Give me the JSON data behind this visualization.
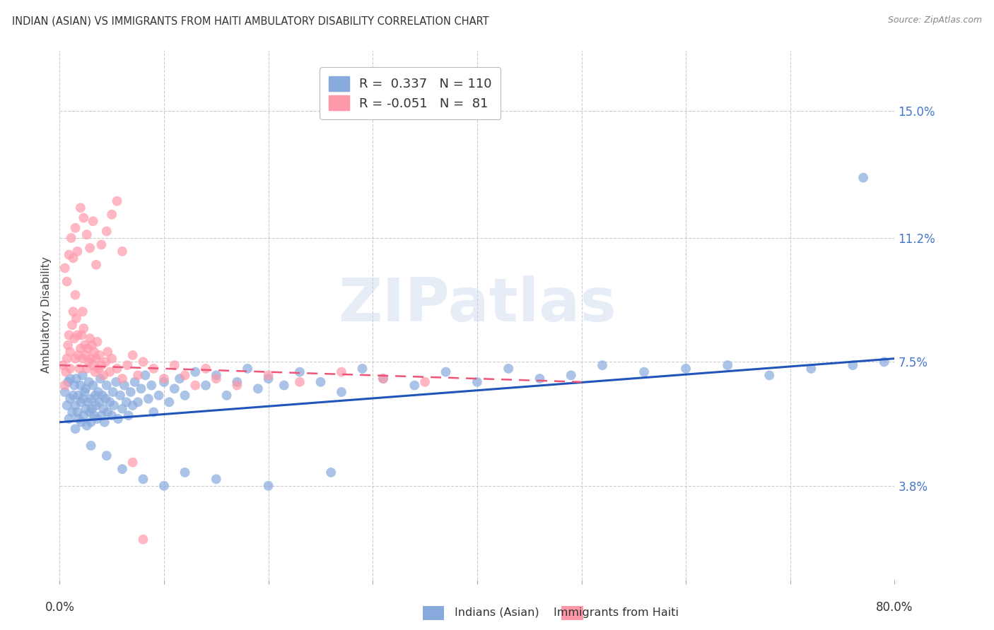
{
  "title": "INDIAN (ASIAN) VS IMMIGRANTS FROM HAITI AMBULATORY DISABILITY CORRELATION CHART",
  "source": "Source: ZipAtlas.com",
  "ylabel": "Ambulatory Disability",
  "ytick_vals": [
    0.038,
    0.075,
    0.112,
    0.15
  ],
  "ytick_labels": [
    "3.8%",
    "7.5%",
    "11.2%",
    "15.0%"
  ],
  "xmin": 0.0,
  "xmax": 0.8,
  "ymin": 0.01,
  "ymax": 0.168,
  "legend_blue_r": "0.337",
  "legend_blue_n": "110",
  "legend_pink_r": "-0.051",
  "legend_pink_n": "81",
  "blue_color": "#88AADD",
  "pink_color": "#FF99AA",
  "blue_line_color": "#2255BB",
  "pink_line_color": "#EE5577",
  "ytick_color": "#4477CC",
  "watermark": "ZIPatlas",
  "blue_trend_x0": 0.0,
  "blue_trend_x1": 0.8,
  "blue_trend_y0": 0.057,
  "blue_trend_y1": 0.076,
  "pink_trend_x0": 0.0,
  "pink_trend_x1": 0.5,
  "pink_trend_y0": 0.074,
  "pink_trend_y1": 0.069,
  "blue_scatter_x": [
    0.005,
    0.007,
    0.008,
    0.009,
    0.01,
    0.01,
    0.012,
    0.013,
    0.014,
    0.015,
    0.015,
    0.016,
    0.017,
    0.018,
    0.018,
    0.02,
    0.02,
    0.021,
    0.022,
    0.022,
    0.023,
    0.024,
    0.025,
    0.025,
    0.026,
    0.027,
    0.028,
    0.029,
    0.03,
    0.03,
    0.031,
    0.032,
    0.033,
    0.034,
    0.035,
    0.036,
    0.037,
    0.038,
    0.039,
    0.04,
    0.041,
    0.042,
    0.043,
    0.044,
    0.045,
    0.046,
    0.048,
    0.05,
    0.051,
    0.052,
    0.054,
    0.056,
    0.058,
    0.06,
    0.062,
    0.064,
    0.066,
    0.068,
    0.07,
    0.072,
    0.075,
    0.078,
    0.082,
    0.085,
    0.088,
    0.09,
    0.095,
    0.1,
    0.105,
    0.11,
    0.115,
    0.12,
    0.13,
    0.14,
    0.15,
    0.16,
    0.17,
    0.18,
    0.19,
    0.2,
    0.215,
    0.23,
    0.25,
    0.27,
    0.29,
    0.31,
    0.34,
    0.37,
    0.4,
    0.43,
    0.46,
    0.49,
    0.52,
    0.56,
    0.6,
    0.64,
    0.68,
    0.72,
    0.76,
    0.79,
    0.03,
    0.045,
    0.06,
    0.08,
    0.1,
    0.12,
    0.15,
    0.2,
    0.26,
    0.77
  ],
  "blue_scatter_y": [
    0.066,
    0.062,
    0.069,
    0.058,
    0.064,
    0.07,
    0.06,
    0.065,
    0.068,
    0.062,
    0.055,
    0.07,
    0.06,
    0.065,
    0.058,
    0.063,
    0.068,
    0.057,
    0.064,
    0.071,
    0.059,
    0.066,
    0.061,
    0.067,
    0.056,
    0.063,
    0.069,
    0.06,
    0.057,
    0.064,
    0.061,
    0.068,
    0.059,
    0.065,
    0.062,
    0.058,
    0.066,
    0.063,
    0.07,
    0.059,
    0.065,
    0.061,
    0.057,
    0.064,
    0.068,
    0.06,
    0.063,
    0.059,
    0.066,
    0.062,
    0.069,
    0.058,
    0.065,
    0.061,
    0.068,
    0.063,
    0.059,
    0.066,
    0.062,
    0.069,
    0.063,
    0.067,
    0.071,
    0.064,
    0.068,
    0.06,
    0.065,
    0.069,
    0.063,
    0.067,
    0.07,
    0.065,
    0.072,
    0.068,
    0.071,
    0.065,
    0.069,
    0.073,
    0.067,
    0.07,
    0.068,
    0.072,
    0.069,
    0.066,
    0.073,
    0.07,
    0.068,
    0.072,
    0.069,
    0.073,
    0.07,
    0.071,
    0.074,
    0.072,
    0.073,
    0.074,
    0.071,
    0.073,
    0.074,
    0.075,
    0.05,
    0.047,
    0.043,
    0.04,
    0.038,
    0.042,
    0.04,
    0.038,
    0.042,
    0.13
  ],
  "pink_scatter_x": [
    0.003,
    0.005,
    0.006,
    0.007,
    0.008,
    0.009,
    0.01,
    0.01,
    0.012,
    0.013,
    0.014,
    0.015,
    0.015,
    0.016,
    0.017,
    0.018,
    0.019,
    0.02,
    0.021,
    0.022,
    0.022,
    0.023,
    0.024,
    0.025,
    0.026,
    0.027,
    0.028,
    0.029,
    0.03,
    0.031,
    0.032,
    0.033,
    0.034,
    0.035,
    0.036,
    0.037,
    0.038,
    0.04,
    0.042,
    0.044,
    0.046,
    0.048,
    0.05,
    0.055,
    0.06,
    0.065,
    0.07,
    0.075,
    0.08,
    0.09,
    0.1,
    0.11,
    0.12,
    0.13,
    0.14,
    0.15,
    0.17,
    0.2,
    0.23,
    0.27,
    0.31,
    0.35,
    0.005,
    0.007,
    0.009,
    0.011,
    0.013,
    0.015,
    0.017,
    0.02,
    0.023,
    0.026,
    0.029,
    0.032,
    0.035,
    0.04,
    0.045,
    0.05,
    0.055,
    0.06,
    0.07,
    0.08
  ],
  "pink_scatter_y": [
    0.074,
    0.068,
    0.072,
    0.076,
    0.08,
    0.083,
    0.078,
    0.073,
    0.086,
    0.09,
    0.082,
    0.076,
    0.095,
    0.088,
    0.083,
    0.077,
    0.073,
    0.079,
    0.083,
    0.076,
    0.09,
    0.085,
    0.08,
    0.077,
    0.073,
    0.079,
    0.075,
    0.082,
    0.076,
    0.08,
    0.074,
    0.078,
    0.072,
    0.076,
    0.081,
    0.073,
    0.077,
    0.074,
    0.071,
    0.075,
    0.078,
    0.072,
    0.076,
    0.073,
    0.07,
    0.074,
    0.077,
    0.071,
    0.075,
    0.073,
    0.07,
    0.074,
    0.071,
    0.068,
    0.073,
    0.07,
    0.068,
    0.071,
    0.069,
    0.072,
    0.07,
    0.069,
    0.103,
    0.099,
    0.107,
    0.112,
    0.106,
    0.115,
    0.108,
    0.121,
    0.118,
    0.113,
    0.109,
    0.117,
    0.104,
    0.11,
    0.114,
    0.119,
    0.123,
    0.108,
    0.045,
    0.022
  ]
}
